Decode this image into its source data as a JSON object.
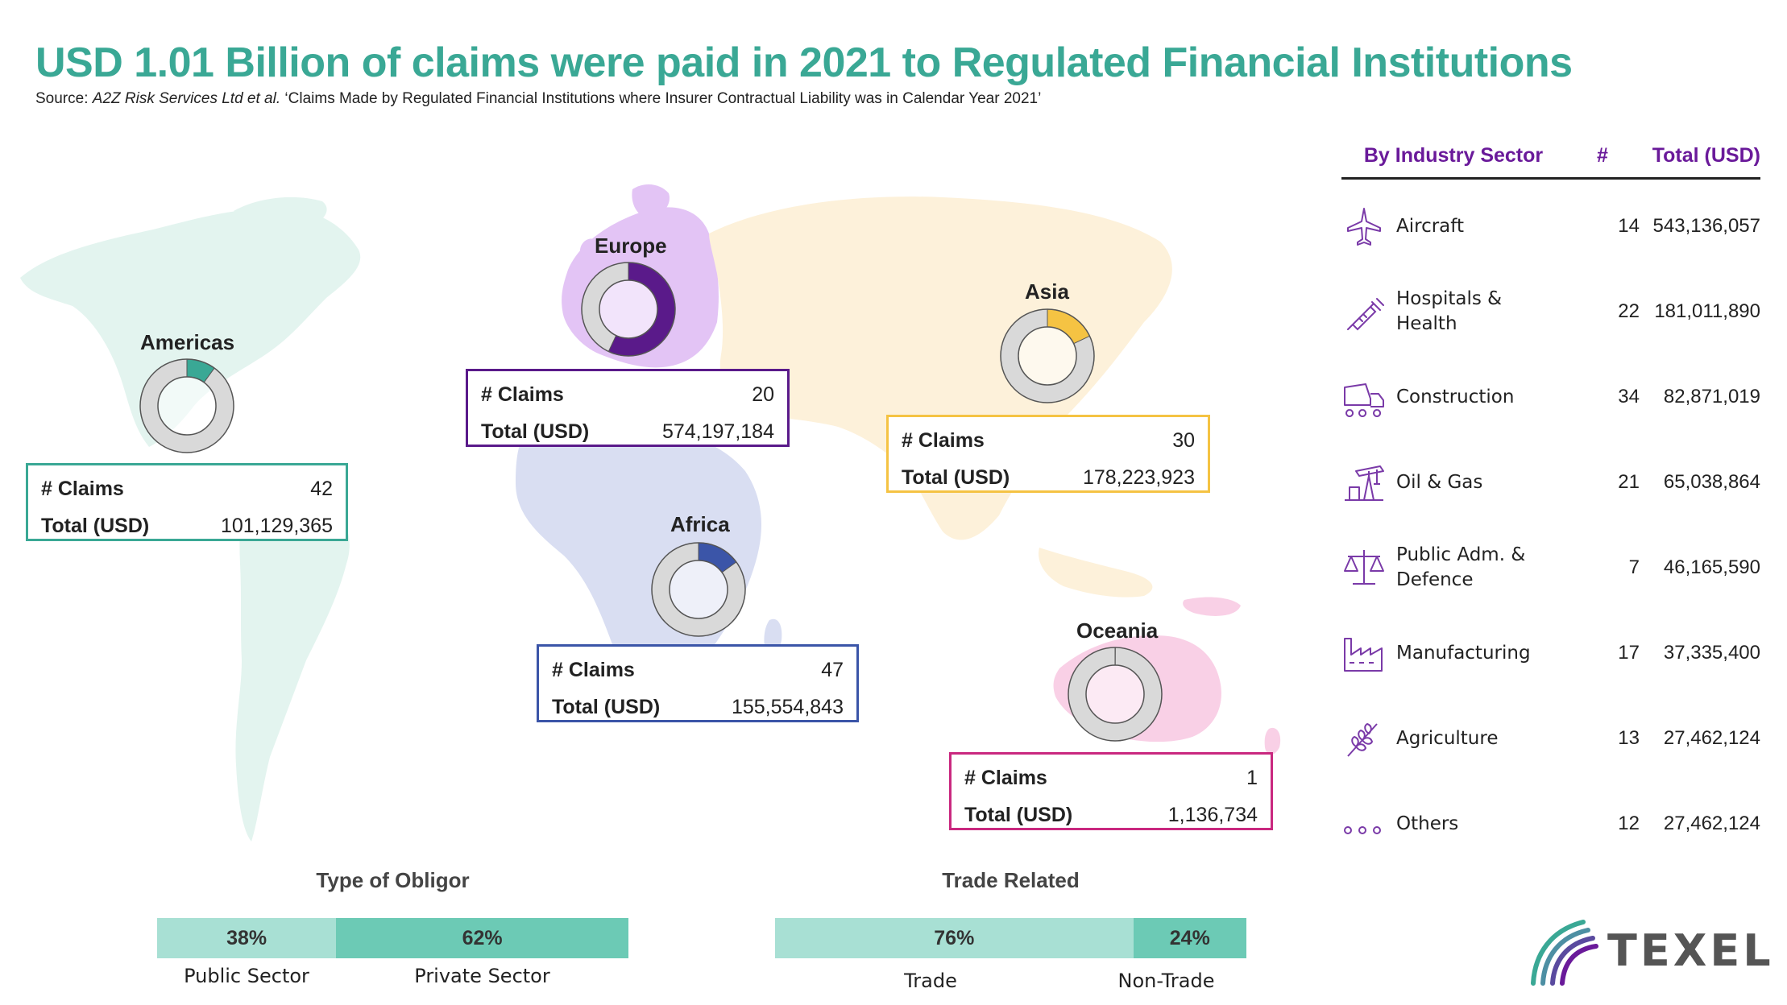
{
  "title": "USD 1.01 Billion of claims were paid in 2021 to Regulated Financial Institutions",
  "source": {
    "prefix": "Source:",
    "italic": "A2Z Risk Services Ltd et al.",
    "rest": "‘Claims Made by Regulated Financial Institutions where Insurer Contractual Liability was in Calendar Year 2021’"
  },
  "colors": {
    "title": "#3aa895",
    "americas": "#3aa895",
    "europe": "#5a1a8a",
    "asia": "#f5c343",
    "africa": "#3b55a8",
    "oceania": "#c9287f",
    "donut_bg": "#d9d9d9",
    "table_header": "#6a1a9a",
    "icon": "#7a3aa8",
    "bar_light": "#a8e0d4",
    "bar_dark": "#6ccab5"
  },
  "regions": {
    "americas": {
      "name": "Americas",
      "claims_label": "# Claims",
      "claims": "42",
      "total_label": "Total (USD)",
      "total": "101,129,365",
      "share": 0.1
    },
    "europe": {
      "name": "Europe",
      "claims_label": "# Claims",
      "claims": "20",
      "total_label": "Total (USD)",
      "total": "574,197,184",
      "share": 0.57
    },
    "asia": {
      "name": "Asia",
      "claims_label": "# Claims",
      "claims": "30",
      "total_label": "Total (USD)",
      "total": "178,223,923",
      "share": 0.18
    },
    "africa": {
      "name": "Africa",
      "claims_label": "# Claims",
      "claims": "47",
      "total_label": "Total (USD)",
      "total": "155,554,843",
      "share": 0.15
    },
    "oceania": {
      "name": "Oceania",
      "claims_label": "# Claims",
      "claims": "1",
      "total_label": "Total (USD)",
      "total": "1,136,734",
      "share": 0.001
    }
  },
  "industry": {
    "headers": {
      "sector": "By Industry Sector",
      "count": "#",
      "total": "Total (USD)"
    },
    "rows": [
      {
        "icon": "airplane-icon",
        "sector": "Aircraft",
        "count": "14",
        "total": "543,136,057"
      },
      {
        "icon": "syringe-icon",
        "sector": "Hospitals & Health",
        "count": "22",
        "total": "181,011,890"
      },
      {
        "icon": "cement-truck-icon",
        "sector": "Construction",
        "count": "34",
        "total": "82,871,019"
      },
      {
        "icon": "oil-pump-icon",
        "sector": "Oil & Gas",
        "count": "21",
        "total": "65,038,864"
      },
      {
        "icon": "scales-icon",
        "sector": "Public Adm. & Defence",
        "count": "7",
        "total": "46,165,590"
      },
      {
        "icon": "factory-icon",
        "sector": "Manufacturing",
        "count": "17",
        "total": "37,335,400"
      },
      {
        "icon": "wheat-icon",
        "sector": "Agriculture",
        "count": "13",
        "total": "27,462,124"
      },
      {
        "icon": "dots-icon",
        "sector": "Others",
        "count": "12",
        "total": "27,462,124"
      }
    ]
  },
  "obligor": {
    "title": "Type of Obligor",
    "segments": [
      {
        "pct_label": "38%",
        "value": 38,
        "label": "Public Sector"
      },
      {
        "pct_label": "62%",
        "value": 62,
        "label": "Private Sector"
      }
    ]
  },
  "trade": {
    "title": "Trade Related",
    "segments": [
      {
        "pct_label": "76%",
        "value": 76,
        "label": "Trade"
      },
      {
        "pct_label": "24%",
        "value": 24,
        "label": "Non-Trade"
      }
    ]
  },
  "logo": {
    "text": "TEXEL"
  }
}
